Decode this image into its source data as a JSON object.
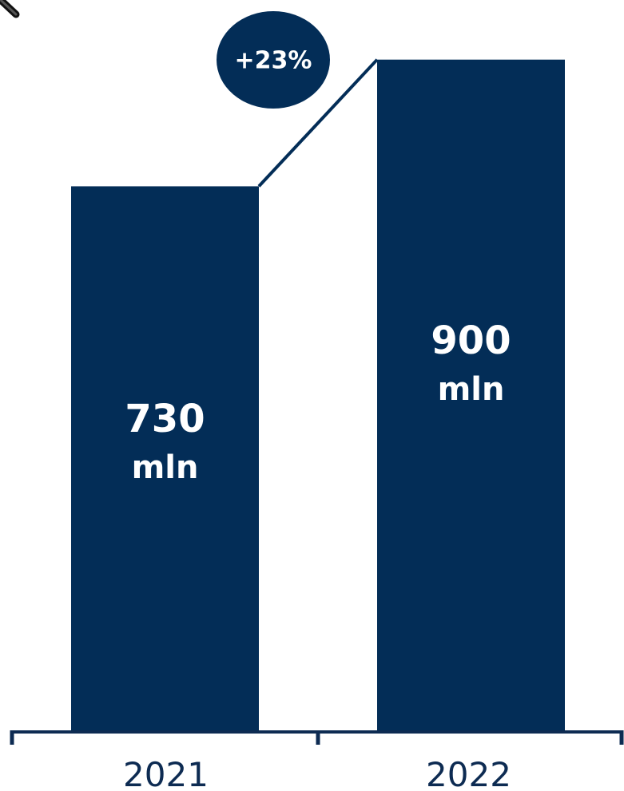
{
  "colors": {
    "bar": "#032d57",
    "axis": "#0d2b52",
    "tick_text": "#0d2b52",
    "label_text": "#ffffff",
    "background": "#ffffff"
  },
  "icons": {
    "corner": "pen-icon"
  },
  "chart_data": {
    "type": "bar",
    "categories": [
      "2021",
      "2022"
    ],
    "values": [
      730,
      900
    ],
    "value_labels": [
      [
        "730",
        "mln"
      ],
      [
        "900",
        "mln"
      ]
    ],
    "growth_label": "+23%",
    "ylim": [
      0,
      980
    ],
    "grid": false,
    "legend": "none"
  }
}
